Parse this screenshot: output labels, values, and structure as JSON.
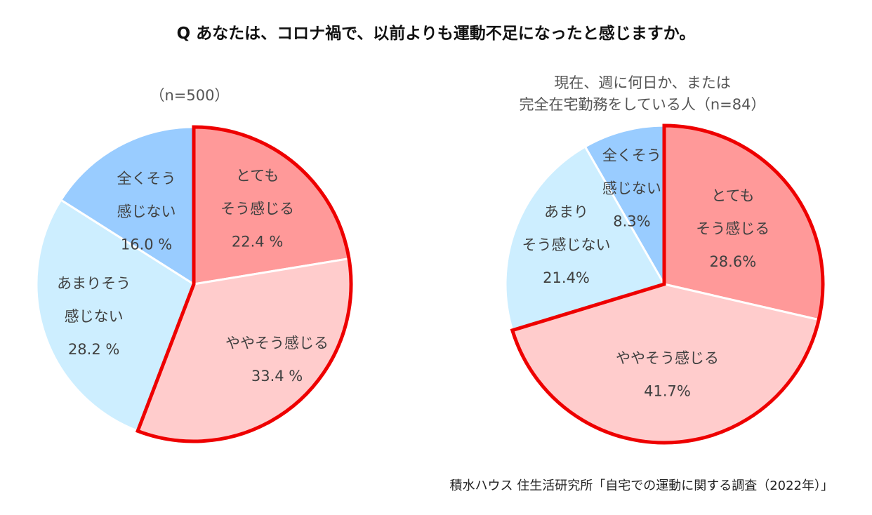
{
  "title": "Q あなたは、コロナ禍で、以前よりも運動不足になったと感じますか。",
  "source": "積水ハウス 住生活研究所「自宅での運動に関する調査（2022年）」",
  "colors": {
    "very": "#ff9999",
    "somewhat": "#ffcccc",
    "not_much": "#cdeeff",
    "not_at_all": "#99ccff",
    "highlight": "#ee0000"
  },
  "chart_data": [
    {
      "type": "pie",
      "subtitle": [
        "（n=500）"
      ],
      "slices": [
        {
          "label": [
            "とても",
            "そう感じる"
          ],
          "value": 22.4,
          "value_text": "22.4 %"
        },
        {
          "label": [
            "ややそう感じる"
          ],
          "value": 33.4,
          "value_text": "33.4 %"
        },
        {
          "label": [
            "あまりそう",
            "感じない"
          ],
          "value": 28.2,
          "value_text": "28.2 %"
        },
        {
          "label": [
            "全くそう",
            "感じない"
          ],
          "value": 16.0,
          "value_text": "16.0 %"
        }
      ]
    },
    {
      "type": "pie",
      "subtitle": [
        "現在、週に何日か、または",
        "完全在宅勤務をしている人（n=84）"
      ],
      "slices": [
        {
          "label": [
            "とても",
            "そう感じる"
          ],
          "value": 28.6,
          "value_text": "28.6%"
        },
        {
          "label": [
            "ややそう感じる"
          ],
          "value": 41.7,
          "value_text": "41.7%"
        },
        {
          "label": [
            "あまり",
            "そう感じない"
          ],
          "value": 21.4,
          "value_text": "21.4%"
        },
        {
          "label": [
            "全くそう",
            "感じない"
          ],
          "value": 8.3,
          "value_text": "8.3%"
        }
      ]
    }
  ]
}
